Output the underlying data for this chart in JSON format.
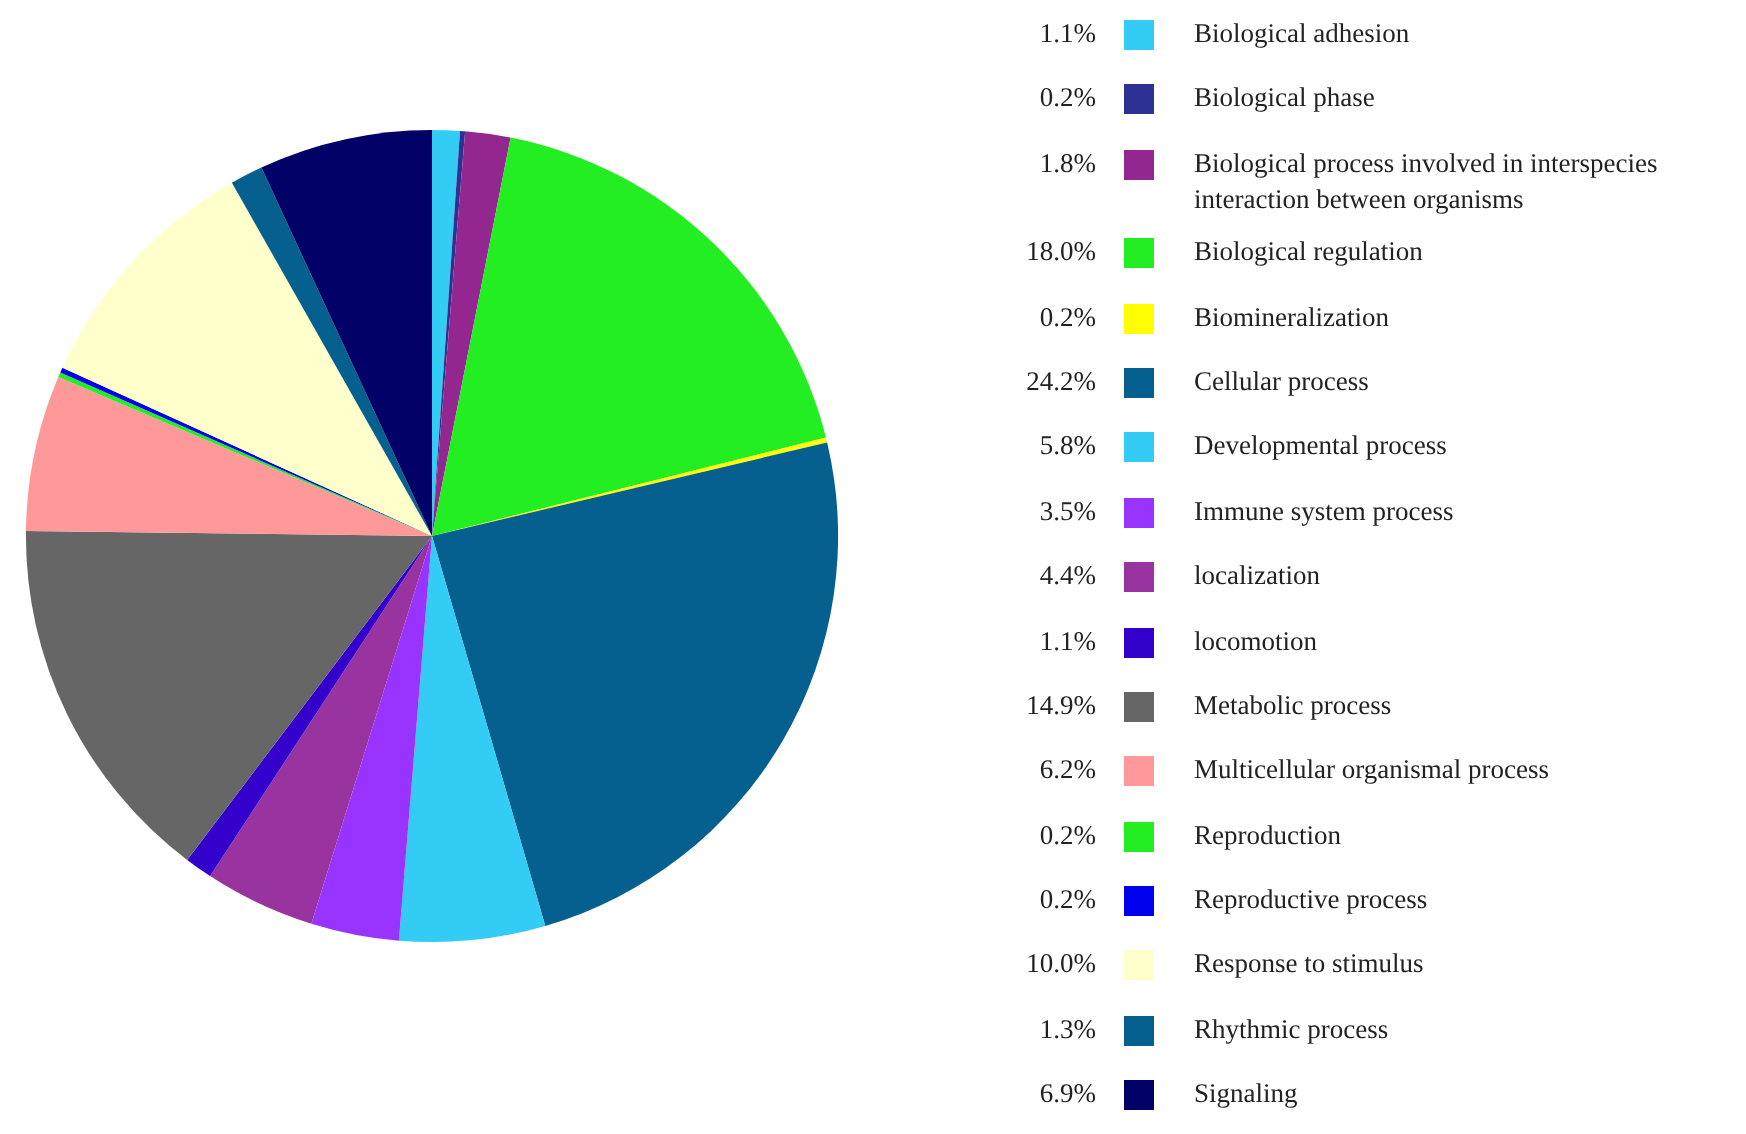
{
  "chart_data": {
    "type": "pie",
    "legend": "right",
    "categories": [
      "Biological adhesion",
      "Biological phase",
      "Biological process involved in interspecies interaction between organisms",
      "Biological regulation",
      "Biomineralization",
      "Cellular process",
      "Developmental process",
      "Immune system process",
      "localization",
      "locomotion",
      "Metabolic process",
      "Multicellular organismal process",
      "Reproduction",
      "Reproductive process",
      "Response to stimulus",
      "Rhythmic process",
      "Signaling"
    ],
    "values": [
      1.1,
      0.2,
      1.8,
      18.0,
      0.2,
      24.2,
      5.8,
      3.5,
      4.4,
      1.1,
      14.9,
      6.2,
      0.2,
      0.2,
      10.0,
      1.3,
      6.9
    ],
    "value_labels": [
      "1.1%",
      "0.2%",
      "1.8%",
      "18.0%",
      "0.2%",
      "24.2%",
      "5.8%",
      "3.5%",
      "4.4%",
      "1.1%",
      "14.9%",
      "6.2%",
      "0.2%",
      "0.2%",
      "10.0%",
      "1.3%",
      "6.9%"
    ],
    "colors": [
      "#33ccf5",
      "#2e3192",
      "#93278f",
      "#22ee22",
      "#ffff00",
      "#06608f",
      "#33ccf5",
      "#9933ff",
      "#9933a0",
      "#3300cc",
      "#666666",
      "#ff9999",
      "#22ee22",
      "#0000ee",
      "#ffffcc",
      "#06608f",
      "#000066"
    ]
  }
}
